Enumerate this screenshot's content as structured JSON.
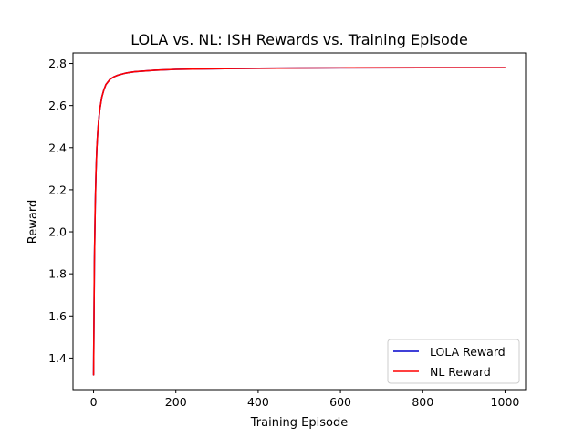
{
  "chart_data": {
    "type": "line",
    "title": "LOLA vs. NL: ISH Rewards vs. Training Episode",
    "xlabel": "Training Episode",
    "ylabel": "Reward",
    "xlim": [
      -50,
      1050
    ],
    "ylim": [
      1.25,
      2.85
    ],
    "xticks": [
      0,
      200,
      400,
      600,
      800,
      1000
    ],
    "xtick_labels": [
      "0",
      "200",
      "400",
      "600",
      "800",
      "1000"
    ],
    "yticks": [
      1.4,
      1.6,
      1.8,
      2.0,
      2.2,
      2.4,
      2.6,
      2.8
    ],
    "ytick_labels": [
      "1.4",
      "1.6",
      "1.8",
      "2.0",
      "2.2",
      "2.4",
      "2.6",
      "2.8"
    ],
    "grid": false,
    "legend_position": "lower-right",
    "x": [
      0,
      2,
      4,
      6,
      8,
      10,
      12,
      15,
      20,
      25,
      30,
      40,
      50,
      60,
      80,
      100,
      150,
      200,
      300,
      400,
      500,
      600,
      800,
      1000
    ],
    "series": [
      {
        "name": "LOLA Reward",
        "color": "#0000cc",
        "values": [
          1.32,
          1.85,
          2.12,
          2.29,
          2.4,
          2.47,
          2.52,
          2.58,
          2.64,
          2.675,
          2.7,
          2.725,
          2.737,
          2.745,
          2.755,
          2.761,
          2.768,
          2.772,
          2.775,
          2.777,
          2.778,
          2.779,
          2.78,
          2.78
        ]
      },
      {
        "name": "NL Reward",
        "color": "#ff0000",
        "values": [
          1.32,
          1.85,
          2.12,
          2.29,
          2.4,
          2.47,
          2.52,
          2.58,
          2.64,
          2.675,
          2.7,
          2.725,
          2.737,
          2.745,
          2.755,
          2.761,
          2.768,
          2.772,
          2.775,
          2.777,
          2.778,
          2.779,
          2.78,
          2.78
        ]
      }
    ]
  }
}
